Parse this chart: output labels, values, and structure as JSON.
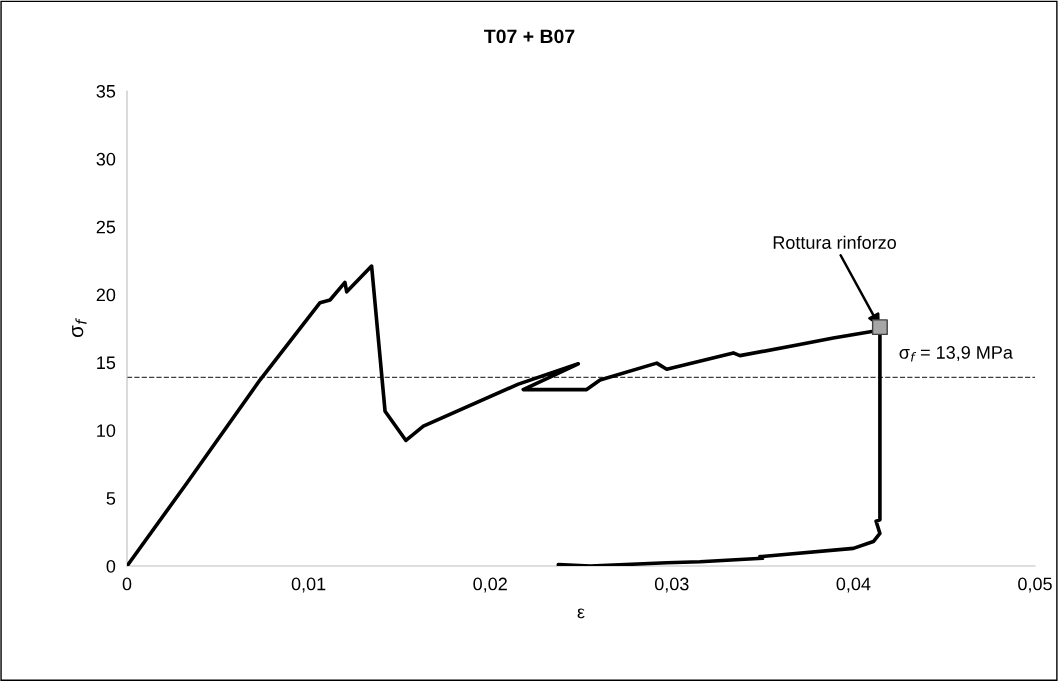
{
  "chart_data": {
    "type": "line",
    "title": "T07 + B07",
    "xlabel": "ε",
    "ylabel": "σ$_{f}$",
    "series": [
      {
        "color": "#000000",
        "marker": "none",
        "line_style": "solid",
        "x": [
          0,
          0.00329,
          0.00732,
          0.01063,
          0.01118,
          0.012,
          0.0121,
          0.01347,
          0.01421,
          0.01536,
          0.01632,
          0.02155,
          0.02485,
          0.02182,
          0.02531,
          0.02605,
          0.02917,
          0.02972,
          0.03339,
          0.03375,
          0.03697,
          0.03889,
          0.0411,
          0.04146,
          0.04146,
          0.04125,
          0.04146,
          0.0411,
          0.04,
          0.03485,
          0.035,
          0.03155,
          0.02972,
          0.0255,
          0.02375
        ],
        "values": [
          0,
          6.1,
          13.7,
          19.4,
          19.6,
          20.9,
          20.2,
          22.1,
          11.4,
          9.25,
          10.3,
          13.4,
          14.9,
          13.0,
          13.0,
          13.7,
          14.95,
          14.5,
          15.7,
          15.5,
          16.3,
          16.8,
          17.3,
          17.6,
          3.4,
          3.3,
          2.4,
          1.8,
          1.3,
          0.69,
          0.57,
          0.31,
          0.24,
          0.0,
          0.1
        ]
      },
      {
        "type": "scatter",
        "color": "#a6a6a6",
        "marker": "square",
        "x": [
          0.04146
        ],
        "values": [
          17.6
        ]
      }
    ],
    "xlim": [
      0,
      0.05
    ],
    "ylim": [
      0,
      35
    ],
    "xticks": [
      0,
      {
        "value": 0.01,
        "label": "0,01"
      },
      {
        "value": 0.02,
        "label": "0,02"
      },
      {
        "value": 0.03,
        "label": "0,03"
      },
      {
        "value": 0.04,
        "label": "0,04"
      },
      {
        "value": 0.05,
        "label": "0,05"
      }
    ],
    "yticks": [
      0,
      5,
      10,
      15,
      20,
      25,
      30,
      35
    ],
    "ref_lines": [
      {
        "axis": "y",
        "value": 13.9,
        "label": "σ$_{f}$ = 13,9 MPa",
        "color": "#404040",
        "line_style": "dashed"
      }
    ],
    "annotations": [
      {
        "text": "Rottura rinforzo",
        "x": 0.04146,
        "y": 17.6
      }
    ],
    "grid": false,
    "legend": false
  }
}
